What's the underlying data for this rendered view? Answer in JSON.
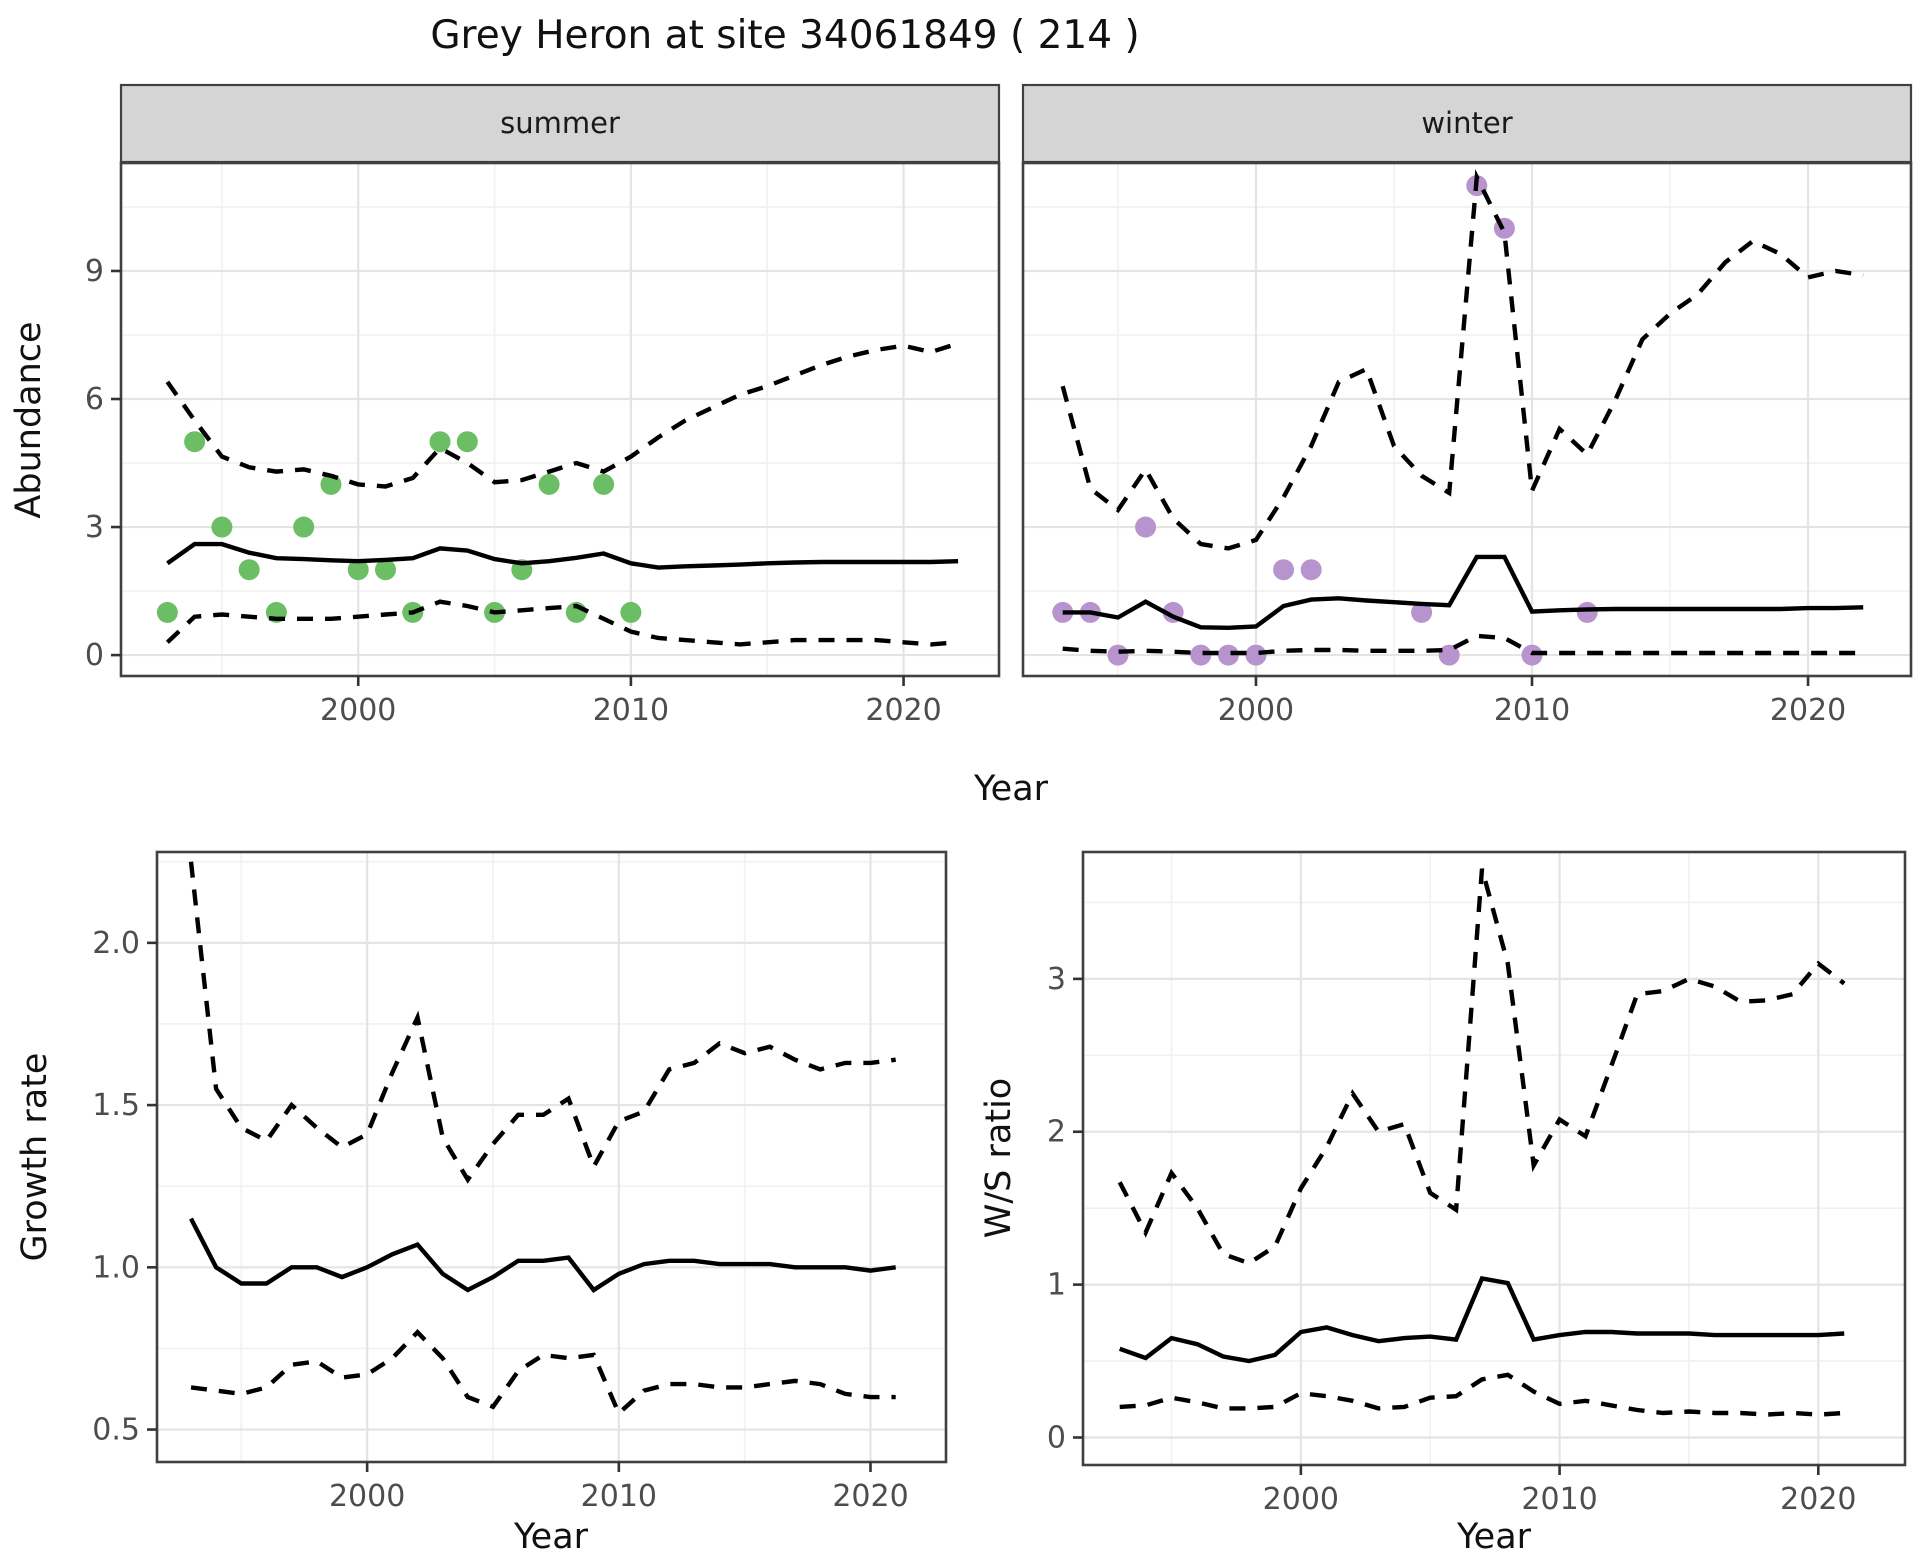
{
  "title": "Grey Heron at site 34061849 ( 214 )",
  "axes": {
    "x_label": "Year",
    "y_label_abundance": "Abundance",
    "y_label_growth": "Growth rate",
    "y_label_ws": "W/S ratio"
  },
  "colors": {
    "summer_points": "#6cbe64",
    "winter_points": "#b894ce",
    "line": "#000000",
    "strip_bg": "#d5d5d5",
    "panel_border": "#404040",
    "grid_major": "#e4e4e4",
    "grid_minor": "#f1f1f1",
    "tick_text": "#4d4d4d"
  },
  "chart_data": [
    {
      "id": "abundance_summer",
      "type": "line",
      "facet": "summer",
      "xlabel": "Year",
      "ylabel": "Abundance",
      "xlim": [
        1991.3,
        2023.5
      ],
      "ylim": [
        -0.49,
        11.53
      ],
      "xticks": [
        2000,
        2010,
        2020
      ],
      "xtick_labels": [
        "2000",
        "2010",
        "2020"
      ],
      "xticks_minor": [
        1995,
        2005,
        2015
      ],
      "yticks": [
        0,
        3,
        6,
        9
      ],
      "ytick_labels": [
        "0",
        "3",
        "6",
        "9"
      ],
      "yticks_minor": [
        1.5,
        4.5,
        7.5,
        10.5
      ],
      "show_yticks": true,
      "series": [
        {
          "name": "observed",
          "type": "scatter",
          "color": "#6cbe64",
          "x": [
            1993,
            1994,
            1995,
            1996,
            1997,
            1998,
            1999,
            2000,
            2001,
            2002,
            2003,
            2004,
            2005,
            2006,
            2007,
            2008,
            2009,
            2010
          ],
          "y": [
            1,
            5,
            3,
            2,
            1,
            3,
            4,
            2,
            2,
            1,
            5,
            5,
            1,
            2,
            4,
            1,
            4,
            1
          ]
        },
        {
          "name": "lower_ci",
          "type": "line",
          "style": "dashed",
          "x": [
            1993,
            1994,
            1995,
            1996,
            1997,
            1998,
            1999,
            2000,
            2001,
            2002,
            2003,
            2004,
            2005,
            2006,
            2007,
            2008,
            2009,
            2010,
            2011,
            2012,
            2013,
            2014,
            2015,
            2016,
            2017,
            2018,
            2019,
            2020,
            2021,
            2022
          ],
          "y": [
            0.3,
            0.9,
            0.95,
            0.9,
            0.85,
            0.85,
            0.85,
            0.9,
            0.95,
            1.0,
            1.25,
            1.15,
            1.0,
            1.05,
            1.1,
            1.15,
            0.85,
            0.55,
            0.4,
            0.35,
            0.3,
            0.25,
            0.3,
            0.35,
            0.35,
            0.35,
            0.35,
            0.3,
            0.25,
            0.3
          ]
        },
        {
          "name": "upper_ci",
          "type": "line",
          "style": "dashed",
          "x": [
            1993,
            1994,
            1995,
            1996,
            1997,
            1998,
            1999,
            2000,
            2001,
            2002,
            2003,
            2004,
            2005,
            2006,
            2007,
            2008,
            2009,
            2010,
            2011,
            2012,
            2013,
            2014,
            2015,
            2016,
            2017,
            2018,
            2019,
            2020,
            2021,
            2022
          ],
          "y": [
            6.4,
            5.5,
            4.65,
            4.4,
            4.3,
            4.35,
            4.2,
            4.0,
            3.95,
            4.15,
            4.85,
            4.5,
            4.05,
            4.1,
            4.3,
            4.5,
            4.3,
            4.65,
            5.1,
            5.5,
            5.8,
            6.1,
            6.3,
            6.55,
            6.8,
            7.0,
            7.15,
            7.25,
            7.1,
            7.3
          ]
        },
        {
          "name": "median",
          "type": "line",
          "style": "solid",
          "x": [
            1993,
            1994,
            1995,
            1996,
            1997,
            1998,
            1999,
            2000,
            2001,
            2002,
            2003,
            2004,
            2005,
            2006,
            2007,
            2008,
            2009,
            2010,
            2011,
            2012,
            2013,
            2014,
            2015,
            2016,
            2017,
            2018,
            2019,
            2020,
            2021,
            2022
          ],
          "y": [
            2.15,
            2.6,
            2.6,
            2.4,
            2.27,
            2.25,
            2.22,
            2.2,
            2.23,
            2.27,
            2.5,
            2.45,
            2.25,
            2.15,
            2.2,
            2.28,
            2.38,
            2.15,
            2.05,
            2.08,
            2.1,
            2.12,
            2.15,
            2.17,
            2.18,
            2.18,
            2.18,
            2.18,
            2.18,
            2.2
          ]
        }
      ]
    },
    {
      "id": "abundance_winter",
      "type": "line",
      "facet": "winter",
      "xlabel": "Year",
      "ylabel": "Abundance",
      "xlim": [
        1991.56,
        2023.73
      ],
      "ylim": [
        -0.49,
        11.53
      ],
      "xticks": [
        2000,
        2010,
        2020
      ],
      "xtick_labels": [
        "2000",
        "2010",
        "2020"
      ],
      "xticks_minor": [
        1995,
        2005,
        2015
      ],
      "yticks": [
        0,
        3,
        6,
        9
      ],
      "ytick_labels": [
        "0",
        "3",
        "6",
        "9"
      ],
      "yticks_minor": [
        1.5,
        4.5,
        7.5,
        10.5
      ],
      "show_yticks": false,
      "series": [
        {
          "name": "observed",
          "type": "scatter",
          "color": "#b894ce",
          "x": [
            1993,
            1994,
            1995,
            1996,
            1997,
            1998,
            1999,
            2000,
            2001,
            2002,
            2006,
            2007,
            2008,
            2009,
            2010,
            2012
          ],
          "y": [
            1,
            1,
            0,
            3,
            1,
            0,
            0,
            0,
            2,
            2,
            1,
            0,
            11,
            10,
            0,
            1
          ]
        },
        {
          "name": "lower_ci",
          "type": "line",
          "style": "dashed",
          "x": [
            1993,
            1994,
            1995,
            1996,
            1997,
            1998,
            1999,
            2000,
            2001,
            2002,
            2003,
            2004,
            2005,
            2006,
            2007,
            2008,
            2009,
            2010,
            2011,
            2012,
            2013,
            2014,
            2015,
            2016,
            2017,
            2018,
            2019,
            2020,
            2021,
            2022
          ],
          "y": [
            0.15,
            0.1,
            0.08,
            0.1,
            0.08,
            0.05,
            0.05,
            0.05,
            0.1,
            0.12,
            0.12,
            0.1,
            0.1,
            0.1,
            0.12,
            0.45,
            0.4,
            0.05,
            0.05,
            0.05,
            0.05,
            0.05,
            0.05,
            0.05,
            0.05,
            0.05,
            0.05,
            0.05,
            0.05,
            0.05
          ]
        },
        {
          "name": "upper_ci",
          "type": "line",
          "style": "dashed",
          "x": [
            1993,
            1994,
            1995,
            1996,
            1997,
            1998,
            1999,
            2000,
            2001,
            2002,
            2003,
            2004,
            2005,
            2006,
            2007,
            2008,
            2009,
            2010,
            2011,
            2012,
            2013,
            2014,
            2015,
            2016,
            2017,
            2018,
            2019,
            2020,
            2021,
            2022
          ],
          "y": [
            6.3,
            3.9,
            3.4,
            4.35,
            3.2,
            2.6,
            2.5,
            2.7,
            3.7,
            4.9,
            6.4,
            6.7,
            4.9,
            4.2,
            3.8,
            11.2,
            9.9,
            3.85,
            5.3,
            4.7,
            5.95,
            7.4,
            8.0,
            8.45,
            9.2,
            9.7,
            9.4,
            8.85,
            9.0,
            8.9
          ]
        },
        {
          "name": "median",
          "type": "line",
          "style": "solid",
          "x": [
            1993,
            1994,
            1995,
            1996,
            1997,
            1998,
            1999,
            2000,
            2001,
            2002,
            2003,
            2004,
            2005,
            2006,
            2007,
            2008,
            2009,
            2010,
            2011,
            2012,
            2013,
            2014,
            2015,
            2016,
            2017,
            2018,
            2019,
            2020,
            2021,
            2022
          ],
          "y": [
            1.0,
            1.0,
            0.88,
            1.25,
            0.9,
            0.65,
            0.64,
            0.67,
            1.15,
            1.3,
            1.33,
            1.28,
            1.24,
            1.2,
            1.17,
            2.3,
            2.3,
            1.02,
            1.05,
            1.07,
            1.08,
            1.08,
            1.08,
            1.08,
            1.08,
            1.08,
            1.08,
            1.1,
            1.1,
            1.12
          ]
        }
      ]
    },
    {
      "id": "growth_rate",
      "type": "line",
      "facet": null,
      "xlabel": "Year",
      "ylabel": "Growth rate",
      "xlim": [
        1991.65,
        2023.0
      ],
      "ylim": [
        0.4,
        2.28
      ],
      "xticks": [
        2000,
        2010,
        2020
      ],
      "xtick_labels": [
        "2000",
        "2010",
        "2020"
      ],
      "xticks_minor": [
        1995,
        2005,
        2015
      ],
      "yticks": [
        0.5,
        1.0,
        1.5,
        2.0
      ],
      "ytick_labels": [
        "0.5",
        "1.0",
        "1.5",
        "2.0"
      ],
      "yticks_minor": [
        0.75,
        1.25,
        1.75,
        2.25
      ],
      "show_yticks": true,
      "series": [
        {
          "name": "lower_ci",
          "type": "line",
          "style": "dashed",
          "x": [
            1993,
            1994,
            1995,
            1996,
            1997,
            1998,
            1999,
            2000,
            2001,
            2002,
            2003,
            2004,
            2005,
            2006,
            2007,
            2008,
            2009,
            2010,
            2011,
            2012,
            2013,
            2014,
            2015,
            2016,
            2017,
            2018,
            2019,
            2020,
            2021
          ],
          "y": [
            0.63,
            0.62,
            0.61,
            0.63,
            0.7,
            0.71,
            0.66,
            0.67,
            0.72,
            0.8,
            0.72,
            0.6,
            0.57,
            0.68,
            0.73,
            0.72,
            0.73,
            0.55,
            0.62,
            0.64,
            0.64,
            0.63,
            0.63,
            0.64,
            0.65,
            0.64,
            0.61,
            0.6,
            0.6
          ]
        },
        {
          "name": "upper_ci",
          "type": "line",
          "style": "dashed",
          "x": [
            1993,
            1994,
            1995,
            1996,
            1997,
            1998,
            1999,
            2000,
            2001,
            2002,
            2003,
            2004,
            2005,
            2006,
            2007,
            2008,
            2009,
            2010,
            2011,
            2012,
            2013,
            2014,
            2015,
            2016,
            2017,
            2018,
            2019,
            2020,
            2021
          ],
          "y": [
            2.25,
            1.55,
            1.43,
            1.39,
            1.5,
            1.43,
            1.37,
            1.41,
            1.6,
            1.77,
            1.4,
            1.27,
            1.38,
            1.47,
            1.47,
            1.52,
            1.31,
            1.45,
            1.48,
            1.61,
            1.63,
            1.69,
            1.66,
            1.68,
            1.64,
            1.61,
            1.63,
            1.63,
            1.64
          ]
        },
        {
          "name": "median",
          "type": "line",
          "style": "solid",
          "x": [
            1993,
            1994,
            1995,
            1996,
            1997,
            1998,
            1999,
            2000,
            2001,
            2002,
            2003,
            2004,
            2005,
            2006,
            2007,
            2008,
            2009,
            2010,
            2011,
            2012,
            2013,
            2014,
            2015,
            2016,
            2017,
            2018,
            2019,
            2020,
            2021
          ],
          "y": [
            1.15,
            1.0,
            0.95,
            0.95,
            1.0,
            1.0,
            0.97,
            1.0,
            1.04,
            1.07,
            0.98,
            0.93,
            0.97,
            1.02,
            1.02,
            1.03,
            0.93,
            0.98,
            1.01,
            1.02,
            1.02,
            1.01,
            1.01,
            1.01,
            1.0,
            1.0,
            1.0,
            0.99,
            1.0
          ]
        }
      ]
    },
    {
      "id": "ws_ratio",
      "type": "line",
      "facet": null,
      "xlabel": "Year",
      "ylabel": "W/S ratio",
      "xlim": [
        1991.58,
        2023.35
      ],
      "ylim": [
        -0.18,
        3.83
      ],
      "xticks": [
        2000,
        2010,
        2020
      ],
      "xtick_labels": [
        "2000",
        "2010",
        "2020"
      ],
      "xticks_minor": [
        1995,
        2005,
        2015
      ],
      "yticks": [
        0,
        1,
        2,
        3
      ],
      "ytick_labels": [
        "0",
        "1",
        "2",
        "3"
      ],
      "yticks_minor": [
        0.5,
        1.5,
        2.5,
        3.5
      ],
      "show_yticks": true,
      "series": [
        {
          "name": "lower_ci",
          "type": "line",
          "style": "dashed",
          "x": [
            1993,
            1994,
            1995,
            1996,
            1997,
            1998,
            1999,
            2000,
            2001,
            2002,
            2003,
            2004,
            2005,
            2006,
            2007,
            2008,
            2009,
            2010,
            2011,
            2012,
            2013,
            2014,
            2015,
            2016,
            2017,
            2018,
            2019,
            2020,
            2021
          ],
          "y": [
            0.2,
            0.21,
            0.26,
            0.23,
            0.19,
            0.19,
            0.2,
            0.29,
            0.27,
            0.24,
            0.19,
            0.2,
            0.26,
            0.27,
            0.38,
            0.41,
            0.3,
            0.22,
            0.24,
            0.21,
            0.18,
            0.16,
            0.17,
            0.16,
            0.16,
            0.15,
            0.16,
            0.15,
            0.16
          ]
        },
        {
          "name": "upper_ci",
          "type": "line",
          "style": "dashed",
          "x": [
            1993,
            1994,
            1995,
            1996,
            1997,
            1998,
            1999,
            2000,
            2001,
            2002,
            2003,
            2004,
            2005,
            2006,
            2007,
            2008,
            2009,
            2010,
            2011,
            2012,
            2013,
            2014,
            2015,
            2016,
            2017,
            2018,
            2019,
            2020,
            2021
          ],
          "y": [
            1.67,
            1.34,
            1.73,
            1.5,
            1.2,
            1.14,
            1.25,
            1.63,
            1.9,
            2.25,
            2.0,
            2.05,
            1.6,
            1.49,
            3.72,
            3.1,
            1.78,
            2.08,
            1.97,
            2.43,
            2.9,
            2.92,
            3.0,
            2.95,
            2.85,
            2.86,
            2.9,
            3.1,
            2.97
          ]
        },
        {
          "name": "median",
          "type": "line",
          "style": "solid",
          "x": [
            1993,
            1994,
            1995,
            1996,
            1997,
            1998,
            1999,
            2000,
            2001,
            2002,
            2003,
            2004,
            2005,
            2006,
            2007,
            2008,
            2009,
            2010,
            2011,
            2012,
            2013,
            2014,
            2015,
            2016,
            2017,
            2018,
            2019,
            2020,
            2021
          ],
          "y": [
            0.58,
            0.52,
            0.65,
            0.61,
            0.53,
            0.5,
            0.54,
            0.69,
            0.72,
            0.67,
            0.63,
            0.65,
            0.66,
            0.64,
            1.04,
            1.01,
            0.64,
            0.67,
            0.69,
            0.69,
            0.68,
            0.68,
            0.68,
            0.67,
            0.67,
            0.67,
            0.67,
            0.67,
            0.68
          ]
        }
      ]
    }
  ]
}
